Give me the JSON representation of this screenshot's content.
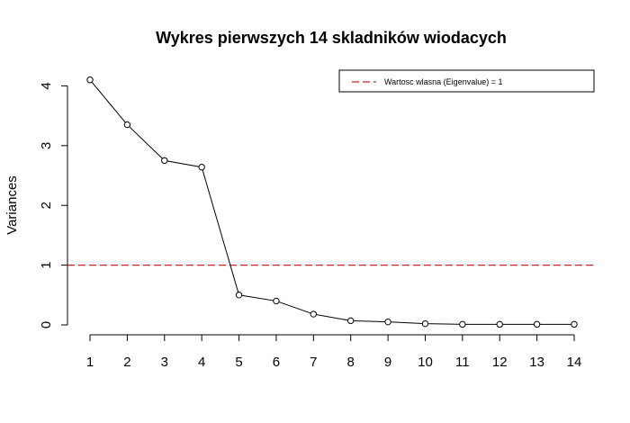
{
  "chart_data": {
    "type": "line",
    "title": "Wykres pierwszych 14 skladników wiodacych",
    "xlabel": "",
    "ylabel": "Variances",
    "x": [
      1,
      2,
      3,
      4,
      5,
      6,
      7,
      8,
      9,
      10,
      11,
      12,
      13,
      14
    ],
    "x_tick_labels": [
      "1",
      "2",
      "3",
      "4",
      "5",
      "6",
      "7",
      "8",
      "9",
      "10",
      "11",
      "12",
      "13",
      "14"
    ],
    "y_ticks": [
      0,
      1,
      2,
      3,
      4
    ],
    "y_tick_labels": [
      "0",
      "1",
      "2",
      "3",
      "4"
    ],
    "xlim": [
      1,
      14
    ],
    "ylim": [
      0,
      4.1
    ],
    "series": [
      {
        "values": [
          4.1,
          3.35,
          2.75,
          2.64,
          0.5,
          0.4,
          0.18,
          0.07,
          0.05,
          0.02,
          0.01,
          0.01,
          0.01,
          0.01
        ],
        "color": "#000000",
        "marker": "open-circle"
      }
    ],
    "reference_line": {
      "y": 1,
      "label": "Wartosc wlasna (Eigenvalue) = 1",
      "color": "#cc2222",
      "style": "dashed"
    },
    "legend": {
      "position": "top-right",
      "entries": [
        "Wartosc wlasna (Eigenvalue) = 1"
      ]
    },
    "grid": false
  }
}
